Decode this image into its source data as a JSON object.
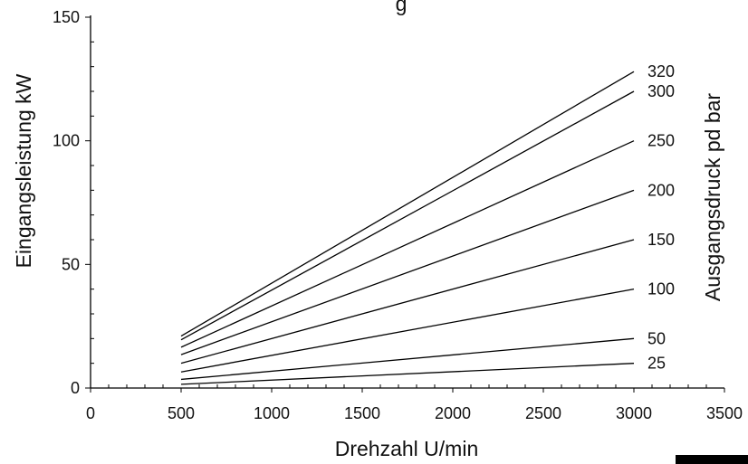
{
  "chart_data": {
    "type": "line",
    "title": "g",
    "xlabel": "Drehzahl U/min",
    "ylabel": "Eingangsleistung kW",
    "legend_title": "Ausgangsdruck pd bar",
    "xlim": [
      0,
      3500
    ],
    "ylim": [
      0,
      150
    ],
    "x_ticks": [
      "0",
      "500",
      "1000",
      "1500",
      "2000",
      "2500",
      "3000",
      "3500"
    ],
    "y_ticks": [
      "0",
      "50",
      "100",
      "150"
    ],
    "grid": false,
    "series": [
      {
        "name": "320",
        "x": [
          500,
          3000
        ],
        "y": [
          21,
          128
        ]
      },
      {
        "name": "300",
        "x": [
          500,
          3000
        ],
        "y": [
          19.5,
          120
        ]
      },
      {
        "name": "250",
        "x": [
          500,
          3000
        ],
        "y": [
          16.5,
          100
        ]
      },
      {
        "name": "200",
        "x": [
          500,
          3000
        ],
        "y": [
          13.5,
          80
        ]
      },
      {
        "name": "150",
        "x": [
          500,
          3000
        ],
        "y": [
          10,
          60
        ]
      },
      {
        "name": "100",
        "x": [
          500,
          3000
        ],
        "y": [
          6.5,
          40
        ]
      },
      {
        "name": "50",
        "x": [
          500,
          3000
        ],
        "y": [
          3.5,
          20
        ]
      },
      {
        "name": "25",
        "x": [
          500,
          3000
        ],
        "y": [
          1.5,
          10
        ]
      }
    ]
  }
}
